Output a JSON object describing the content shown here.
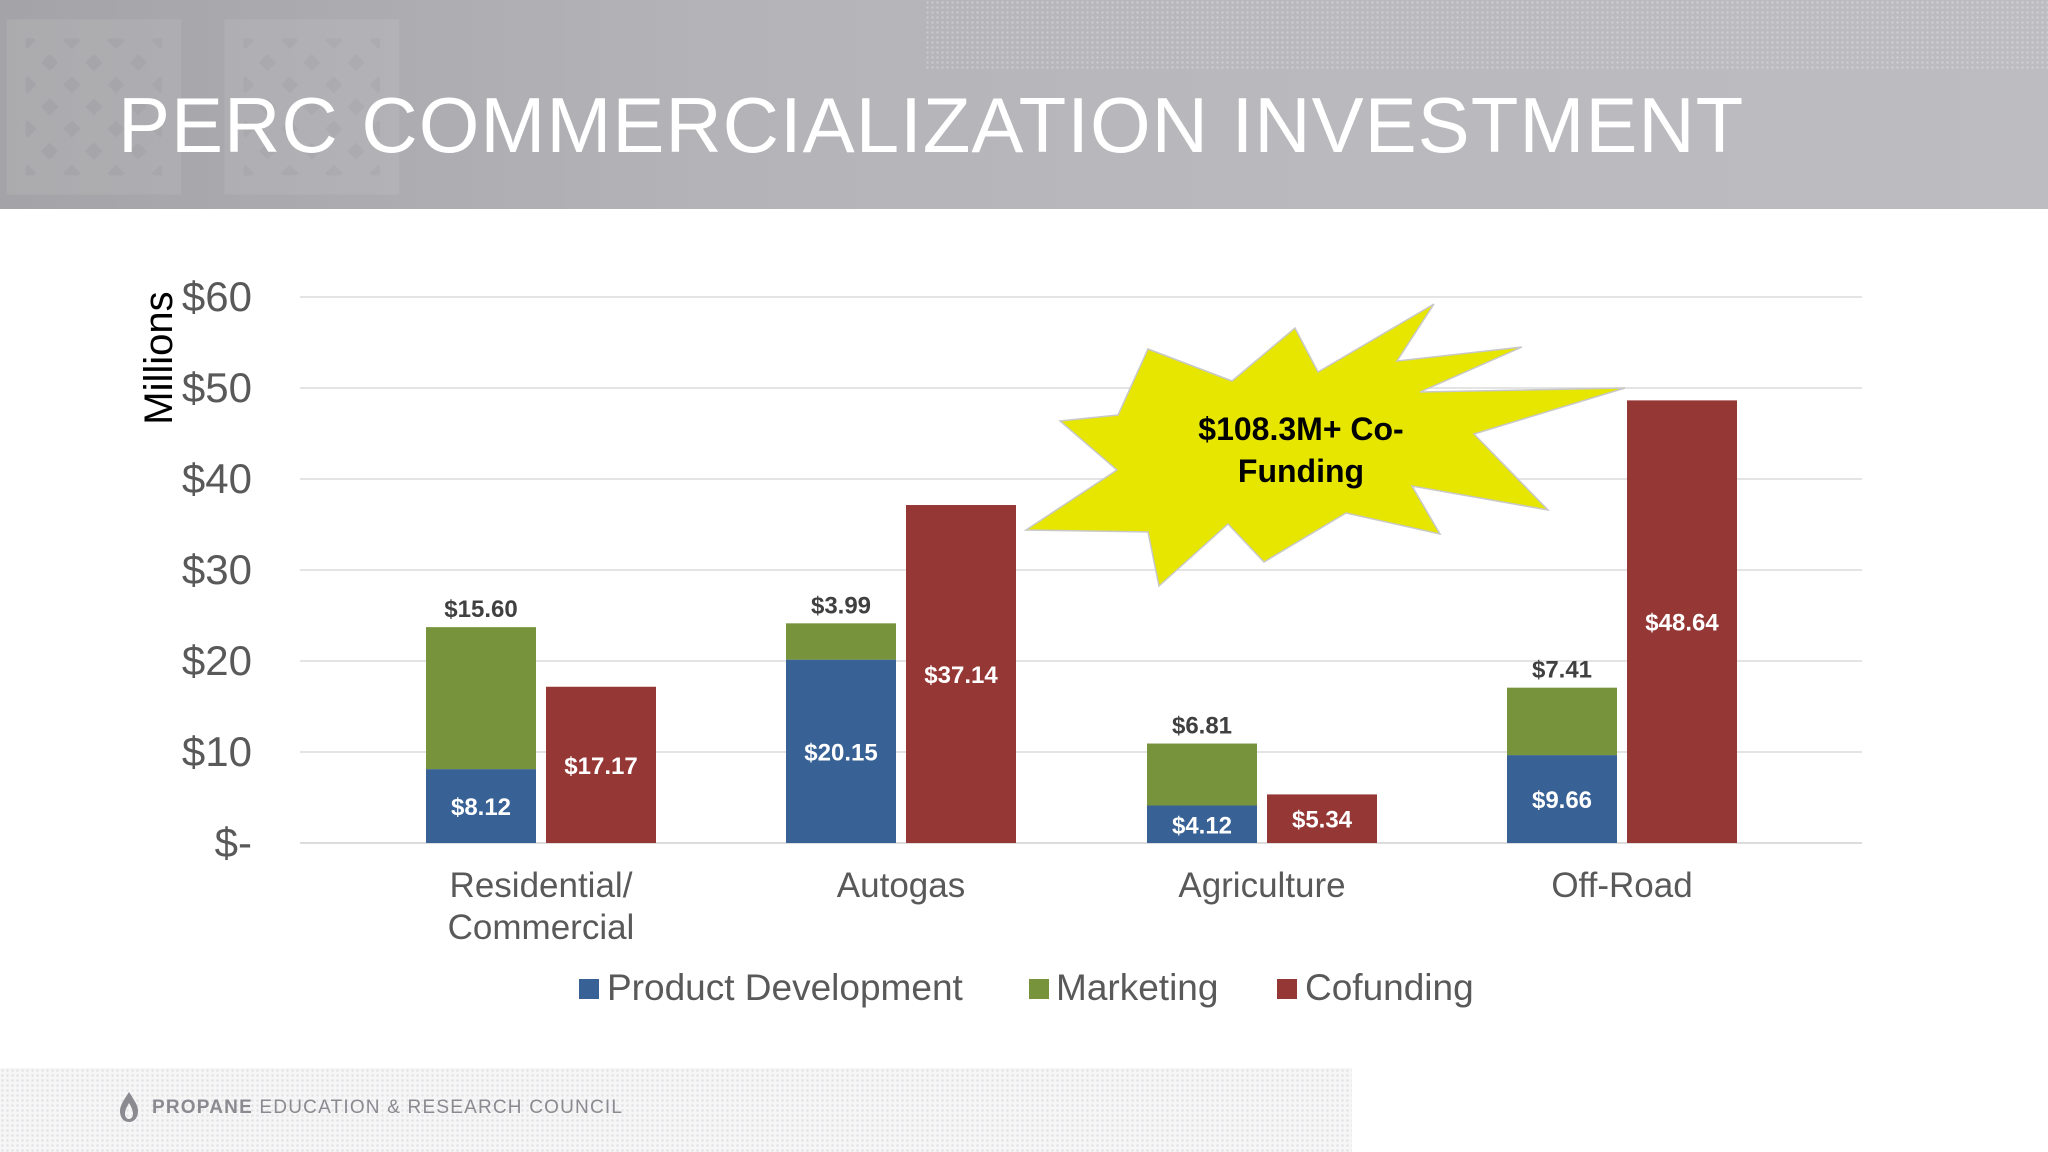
{
  "slide": {
    "title": "PERC COMMERCIALIZATION INVESTMENT",
    "footer_bold": "PROPANE",
    "footer_rest": " EDUCATION & RESEARCH COUNCIL",
    "callout": [
      "$108.3M+ Co-",
      "Funding"
    ]
  },
  "colors": {
    "product_development": "#386195",
    "marketing": "#77933c",
    "cofunding": "#953735",
    "callout_fill": "#e6e600"
  },
  "chart_data": {
    "type": "bar",
    "ylabel": "Millions",
    "ylim": [
      0,
      60
    ],
    "y_ticks": [
      {
        "value": 60,
        "label": "$60"
      },
      {
        "value": 50,
        "label": "$50"
      },
      {
        "value": 40,
        "label": "$40"
      },
      {
        "value": 30,
        "label": "$30"
      },
      {
        "value": 20,
        "label": "$20"
      },
      {
        "value": 10,
        "label": "$10"
      },
      {
        "value": 0,
        "label": "$-"
      }
    ],
    "grid": true,
    "legend": "bottom",
    "categories": [
      [
        "Residential/",
        "Commercial"
      ],
      [
        "Autogas"
      ],
      [
        "Agriculture"
      ],
      [
        "Off-Road"
      ]
    ],
    "series": [
      {
        "name": "Product Development",
        "stack": "perc",
        "values": [
          8.12,
          20.15,
          4.12,
          9.66
        ],
        "labels": [
          "$8.12",
          "$20.15",
          "$4.12",
          "$9.66"
        ]
      },
      {
        "name": "Marketing",
        "stack": "perc",
        "values": [
          15.6,
          3.99,
          6.81,
          7.41
        ],
        "labels": [
          "$15.60",
          "$3.99",
          "$6.81",
          "$7.41"
        ]
      },
      {
        "name": "Cofunding",
        "stack": "cofunding",
        "values": [
          17.17,
          37.14,
          5.34,
          48.64
        ],
        "labels": [
          "$17.17",
          "$37.14",
          "$5.34",
          "$48.64"
        ]
      }
    ]
  }
}
